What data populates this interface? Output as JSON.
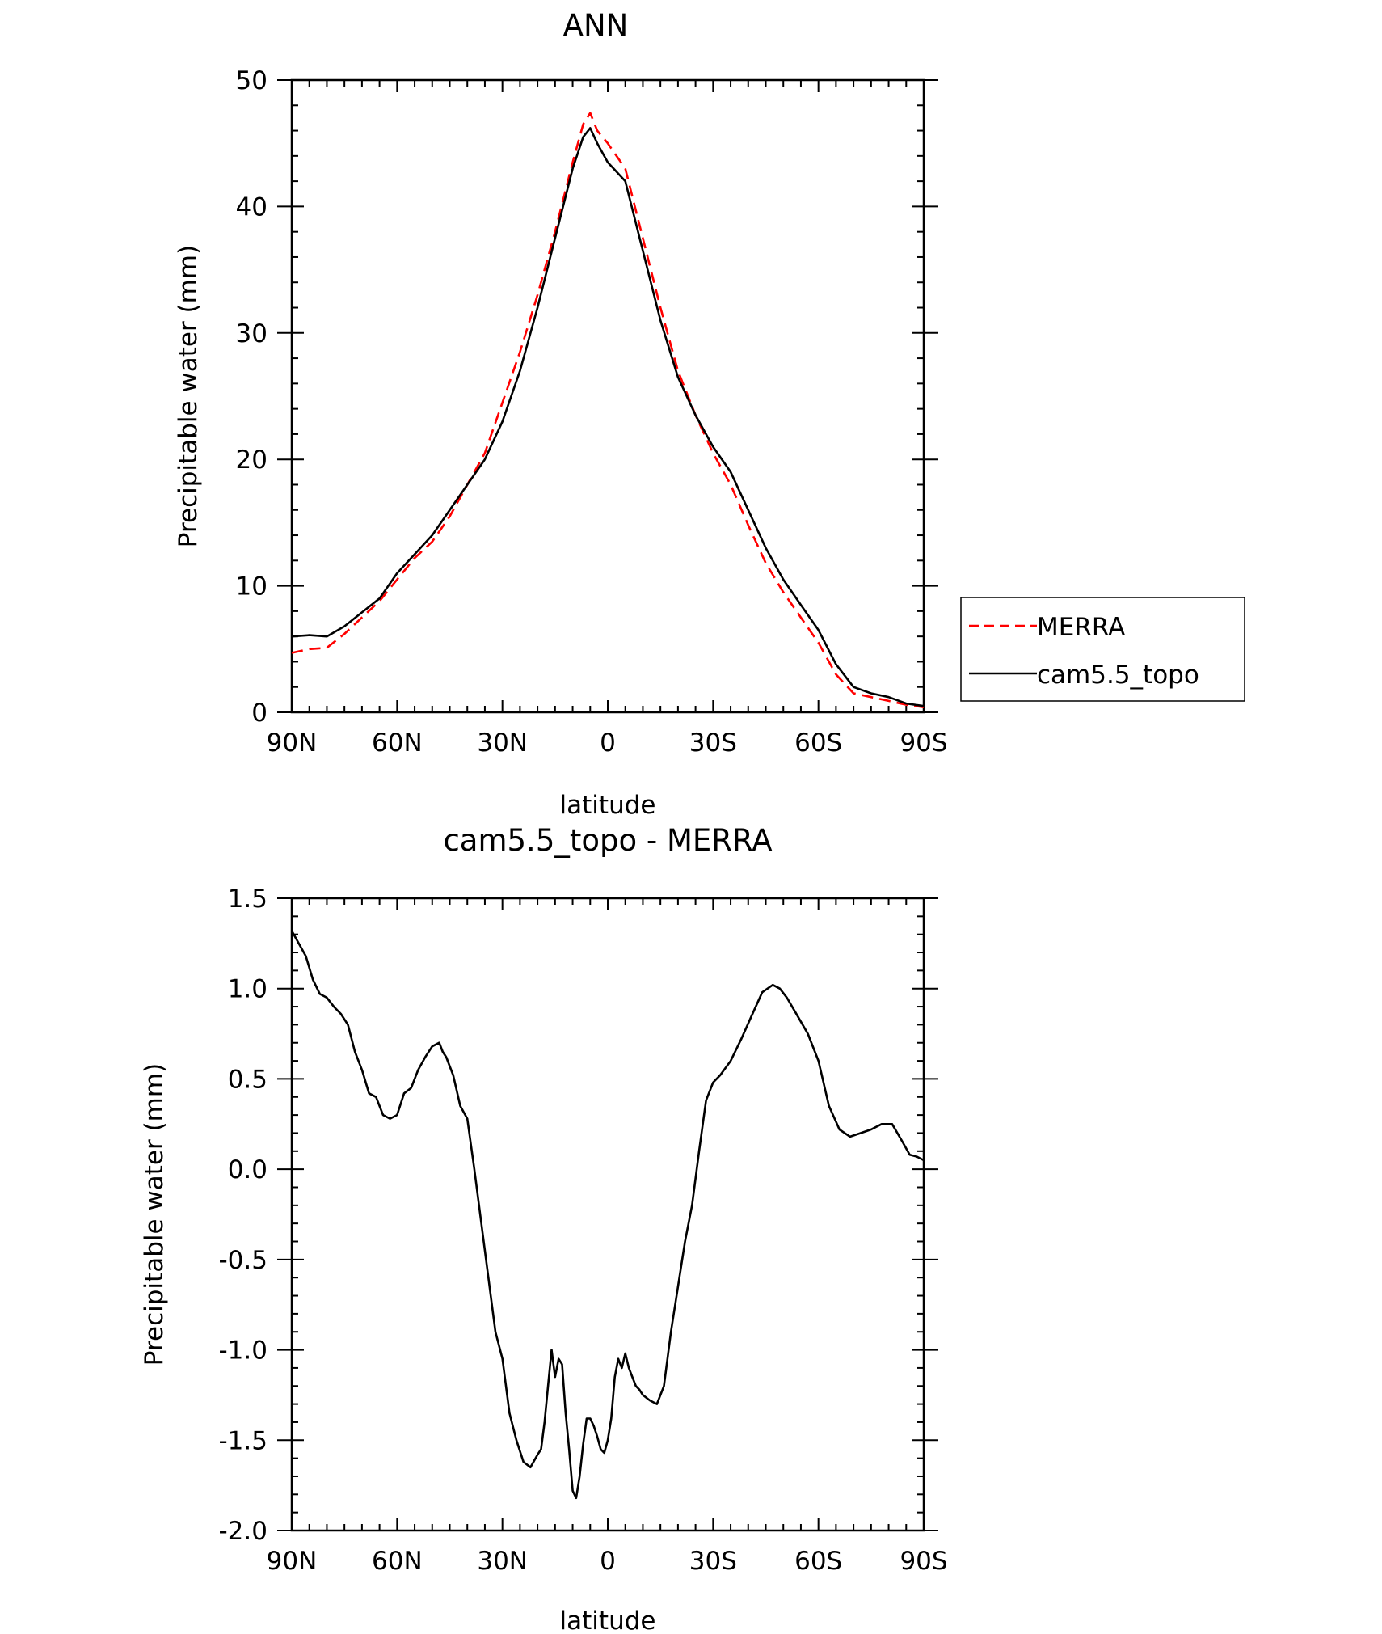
{
  "chart_data": [
    {
      "type": "line",
      "title": "ANN",
      "xlabel": "latitude",
      "ylabel": "Precipitable water (mm)",
      "xlim": [
        90,
        -90
      ],
      "ylim": [
        0,
        50
      ],
      "xticks": [
        {
          "value": 90,
          "label": "90N"
        },
        {
          "value": 60,
          "label": "60N"
        },
        {
          "value": 30,
          "label": "30N"
        },
        {
          "value": 0,
          "label": "0"
        },
        {
          "value": -30,
          "label": "30S"
        },
        {
          "value": -60,
          "label": "60S"
        },
        {
          "value": -90,
          "label": "90S"
        }
      ],
      "yticks": [
        {
          "value": 0,
          "label": "0"
        },
        {
          "value": 10,
          "label": "10"
        },
        {
          "value": 20,
          "label": "20"
        },
        {
          "value": 30,
          "label": "30"
        },
        {
          "value": 40,
          "label": "40"
        },
        {
          "value": 50,
          "label": "50"
        }
      ],
      "grid": false,
      "legend": "right",
      "series": [
        {
          "name": "MERRA",
          "color": "#ff0000",
          "dash": "dashed",
          "x": [
            90,
            85,
            80,
            75,
            70,
            65,
            60,
            55,
            50,
            45,
            40,
            35,
            30,
            25,
            20,
            15,
            10,
            7,
            5,
            3,
            0,
            -5,
            -10,
            -15,
            -20,
            -25,
            -30,
            -35,
            -40,
            -45,
            -50,
            -55,
            -60,
            -65,
            -70,
            -75,
            -80,
            -85,
            -90
          ],
          "y": [
            4.7,
            5.0,
            5.1,
            6.2,
            7.5,
            8.8,
            10.5,
            12.2,
            13.5,
            15.5,
            18.0,
            20.5,
            24.5,
            28.5,
            33.0,
            38.0,
            43.5,
            46.5,
            47.4,
            46.0,
            45.0,
            43.0,
            37.5,
            32.0,
            27.0,
            23.5,
            20.5,
            18.0,
            14.8,
            11.8,
            9.5,
            7.5,
            5.5,
            3.0,
            1.5,
            1.2,
            0.9,
            0.6,
            0.4
          ]
        },
        {
          "name": "cam5.5_topo",
          "color": "#000000",
          "dash": "solid",
          "x": [
            90,
            85,
            80,
            75,
            70,
            65,
            60,
            55,
            50,
            45,
            40,
            35,
            30,
            25,
            20,
            15,
            10,
            7,
            5,
            3,
            0,
            -5,
            -10,
            -15,
            -20,
            -25,
            -30,
            -35,
            -40,
            -45,
            -50,
            -55,
            -60,
            -65,
            -70,
            -75,
            -80,
            -85,
            -90
          ],
          "y": [
            6.0,
            6.1,
            6.0,
            6.8,
            7.9,
            9.0,
            11.0,
            12.5,
            14.0,
            16.0,
            18.0,
            20.0,
            23.0,
            27.0,
            32.0,
            37.5,
            43.0,
            45.5,
            46.2,
            45.0,
            43.5,
            42.0,
            36.5,
            31.0,
            26.5,
            23.5,
            21.0,
            19.0,
            16.0,
            13.0,
            10.5,
            8.5,
            6.5,
            3.8,
            2.0,
            1.5,
            1.2,
            0.7,
            0.5
          ]
        }
      ]
    },
    {
      "type": "line",
      "title": "cam5.5_topo - MERRA",
      "xlabel": "latitude",
      "ylabel": "Precipitable water (mm)",
      "xlim": [
        90,
        -90
      ],
      "ylim": [
        -2.0,
        1.5
      ],
      "xticks": [
        {
          "value": 90,
          "label": "90N"
        },
        {
          "value": 60,
          "label": "60N"
        },
        {
          "value": 30,
          "label": "30N"
        },
        {
          "value": 0,
          "label": "0"
        },
        {
          "value": -30,
          "label": "30S"
        },
        {
          "value": -60,
          "label": "60S"
        },
        {
          "value": -90,
          "label": "90S"
        }
      ],
      "yticks": [
        {
          "value": 1.5,
          "label": "1.5"
        },
        {
          "value": 1.0,
          "label": "1.0"
        },
        {
          "value": 0.5,
          "label": "0.5"
        },
        {
          "value": 0.0,
          "label": "0.0"
        },
        {
          "value": -0.5,
          "label": "-0.5"
        },
        {
          "value": -1.0,
          "label": "-1.0"
        },
        {
          "value": -1.5,
          "label": "-1.5"
        },
        {
          "value": -2.0,
          "label": "-2.0"
        }
      ],
      "grid": false,
      "series": [
        {
          "color": "#000000",
          "dash": "solid",
          "x": [
            90,
            88,
            86,
            84,
            82,
            80,
            78,
            76,
            74,
            72,
            70,
            68,
            66,
            64,
            62,
            60,
            58,
            56,
            54,
            52,
            50,
            48,
            47,
            46,
            44,
            42,
            40,
            38,
            36,
            34,
            32,
            30,
            28,
            26,
            24,
            22,
            20,
            19,
            18,
            17,
            16,
            15,
            14,
            13,
            12,
            11,
            10,
            9,
            8,
            7,
            6,
            5,
            4,
            3,
            2,
            1,
            0,
            -1,
            -2,
            -3,
            -4,
            -5,
            -6,
            -7,
            -8,
            -9,
            -10,
            -12,
            -14,
            -16,
            -18,
            -20,
            -22,
            -24,
            -26,
            -28,
            -30,
            -32,
            -35,
            -38,
            -41,
            -44,
            -47,
            -49,
            -51,
            -54,
            -57,
            -60,
            -63,
            -66,
            -69,
            -72,
            -75,
            -78,
            -81,
            -84,
            -86,
            -88,
            -90
          ],
          "y": [
            1.32,
            1.25,
            1.18,
            1.05,
            0.97,
            0.95,
            0.9,
            0.86,
            0.8,
            0.65,
            0.55,
            0.42,
            0.4,
            0.3,
            0.28,
            0.3,
            0.42,
            0.45,
            0.55,
            0.62,
            0.68,
            0.7,
            0.65,
            0.62,
            0.52,
            0.35,
            0.28,
            0.0,
            -0.3,
            -0.6,
            -0.9,
            -1.05,
            -1.35,
            -1.5,
            -1.62,
            -1.65,
            -1.58,
            -1.55,
            -1.4,
            -1.2,
            -1.0,
            -1.15,
            -1.05,
            -1.08,
            -1.35,
            -1.55,
            -1.78,
            -1.82,
            -1.7,
            -1.52,
            -1.38,
            -1.38,
            -1.42,
            -1.48,
            -1.55,
            -1.57,
            -1.5,
            -1.38,
            -1.15,
            -1.05,
            -1.1,
            -1.02,
            -1.1,
            -1.15,
            -1.2,
            -1.22,
            -1.25,
            -1.28,
            -1.3,
            -1.2,
            -0.9,
            -0.65,
            -0.4,
            -0.2,
            0.1,
            0.38,
            0.48,
            0.52,
            0.6,
            0.72,
            0.85,
            0.98,
            1.02,
            1.0,
            0.95,
            0.85,
            0.75,
            0.6,
            0.35,
            0.22,
            0.18,
            0.2,
            0.22,
            0.25,
            0.25,
            0.15,
            0.08,
            0.07,
            0.05
          ]
        }
      ]
    }
  ]
}
